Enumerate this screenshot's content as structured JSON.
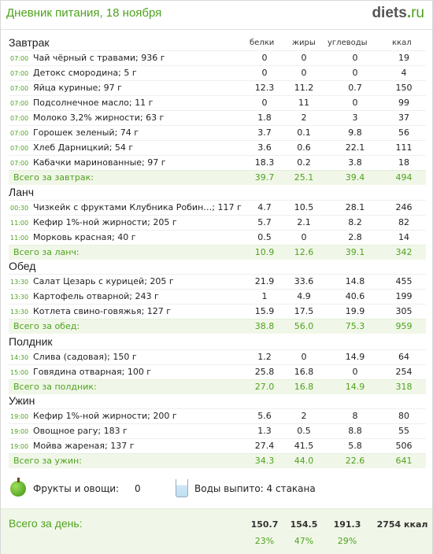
{
  "header": {
    "title": "Дневник питания, 18 ноября",
    "logo_main": "diets",
    "logo_dot": ".",
    "logo_tld": "ru"
  },
  "columns": {
    "protein": "белки",
    "fat": "жиры",
    "carbs": "углеводы",
    "kcal": "ккал"
  },
  "meals": [
    {
      "title": "Завтрак",
      "items": [
        {
          "time": "07:00",
          "name": "Чай чёрный с травами; 936 г",
          "p": "0",
          "f": "0",
          "c": "0",
          "k": "19"
        },
        {
          "time": "07:00",
          "name": "Детокс смородина; 5 г",
          "p": "0",
          "f": "0",
          "c": "0",
          "k": "4"
        },
        {
          "time": "07:00",
          "name": "Яйца куриные; 97 г",
          "p": "12.3",
          "f": "11.2",
          "c": "0.7",
          "k": "150"
        },
        {
          "time": "07:00",
          "name": "Подсолнечное масло; 11 г",
          "p": "0",
          "f": "11",
          "c": "0",
          "k": "99"
        },
        {
          "time": "07:00",
          "name": "Молоко 3,2% жирности; 63 г",
          "p": "1.8",
          "f": "2",
          "c": "3",
          "k": "37"
        },
        {
          "time": "07:00",
          "name": "Горошек зеленый; 74 г",
          "p": "3.7",
          "f": "0.1",
          "c": "9.8",
          "k": "56"
        },
        {
          "time": "07:00",
          "name": "Хлеб Дарницкий; 54 г",
          "p": "3.6",
          "f": "0.6",
          "c": "22.1",
          "k": "111"
        },
        {
          "time": "07:00",
          "name": "Кабачки маринованные; 97 г",
          "p": "18.3",
          "f": "0.2",
          "c": "3.8",
          "k": "18"
        }
      ],
      "total": {
        "label": "Всего за завтрак:",
        "p": "39.7",
        "f": "25.1",
        "c": "39.4",
        "k": "494"
      }
    },
    {
      "title": "Ланч",
      "items": [
        {
          "time": "00:30",
          "name": "Чизкейк с фруктами Клубника Робин…; 117 г",
          "p": "4.7",
          "f": "10.5",
          "c": "28.1",
          "k": "246"
        },
        {
          "time": "11:00",
          "name": "Кефир 1%-ной жирности; 205 г",
          "p": "5.7",
          "f": "2.1",
          "c": "8.2",
          "k": "82"
        },
        {
          "time": "11:00",
          "name": "Морковь красная; 40 г",
          "p": "0.5",
          "f": "0",
          "c": "2.8",
          "k": "14"
        }
      ],
      "total": {
        "label": "Всего за ланч:",
        "p": "10.9",
        "f": "12.6",
        "c": "39.1",
        "k": "342"
      }
    },
    {
      "title": "Обед",
      "items": [
        {
          "time": "13:30",
          "name": "Салат Цезарь с курицей; 205 г",
          "p": "21.9",
          "f": "33.6",
          "c": "14.8",
          "k": "455"
        },
        {
          "time": "13:30",
          "name": "Картофель отварной; 243 г",
          "p": "1",
          "f": "4.9",
          "c": "40.6",
          "k": "199"
        },
        {
          "time": "13:30",
          "name": "Котлета свино-говяжья; 127 г",
          "p": "15.9",
          "f": "17.5",
          "c": "19.9",
          "k": "305"
        }
      ],
      "total": {
        "label": "Всего за обед:",
        "p": "38.8",
        "f": "56.0",
        "c": "75.3",
        "k": "959"
      }
    },
    {
      "title": "Полдник",
      "items": [
        {
          "time": "14:30",
          "name": "Слива (садовая); 150 г",
          "p": "1.2",
          "f": "0",
          "c": "14.9",
          "k": "64"
        },
        {
          "time": "15:00",
          "name": "Говядина отварная; 100 г",
          "p": "25.8",
          "f": "16.8",
          "c": "0",
          "k": "254"
        }
      ],
      "total": {
        "label": "Всего за полдник:",
        "p": "27.0",
        "f": "16.8",
        "c": "14.9",
        "k": "318"
      }
    },
    {
      "title": "Ужин",
      "items": [
        {
          "time": "19:00",
          "name": "Кефир 1%-ной жирности; 200 г",
          "p": "5.6",
          "f": "2",
          "c": "8",
          "k": "80"
        },
        {
          "time": "19:00",
          "name": "Овощное рагу; 183 г",
          "p": "1.3",
          "f": "0.5",
          "c": "8.8",
          "k": "55"
        },
        {
          "time": "19:00",
          "name": "Мойва жареная; 137 г",
          "p": "27.4",
          "f": "41.5",
          "c": "5.8",
          "k": "506"
        }
      ],
      "total": {
        "label": "Всего за ужин:",
        "p": "34.3",
        "f": "44.0",
        "c": "22.6",
        "k": "641"
      }
    }
  ],
  "extras": {
    "fruits_label": "Фрукты и овощи:",
    "fruits_value": "0",
    "water_label": "Воды выпито: 4 стакана"
  },
  "day_total": {
    "label": "Всего за день:",
    "p": "150.7",
    "f": "154.5",
    "c": "191.3",
    "k": "2754 ккал",
    "p_pct": "23%",
    "f_pct": "47%",
    "c_pct": "29%"
  }
}
